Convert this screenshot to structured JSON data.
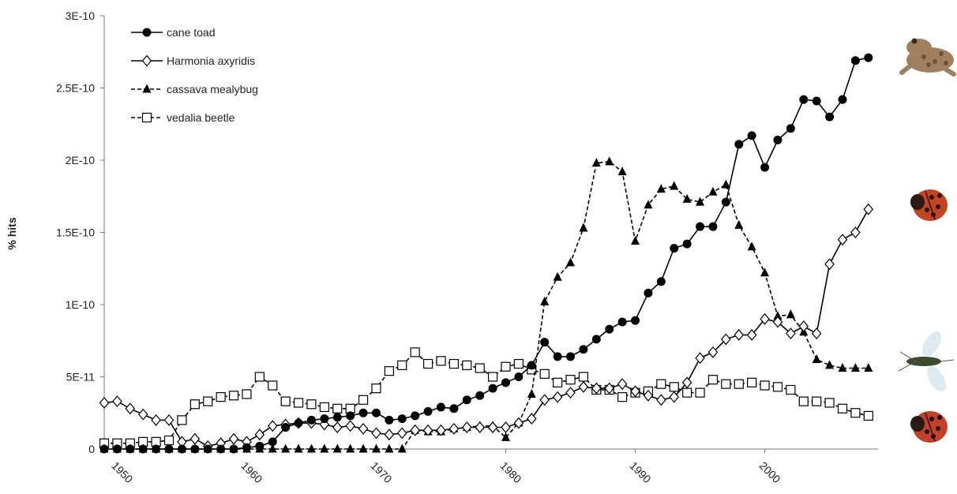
{
  "chart_data": {
    "type": "line",
    "ylabel": "% hits",
    "xlabel": "",
    "xlim": [
      1949,
      2008.5
    ],
    "ylim": [
      0,
      3e-10
    ],
    "y_ticks": [
      {
        "value": 0,
        "label": "0"
      },
      {
        "value": 5e-11,
        "label": "5E-11"
      },
      {
        "value": 1e-10,
        "label": "1E-10"
      },
      {
        "value": 1.5e-10,
        "label": "1.5E-10"
      },
      {
        "value": 2e-10,
        "label": "2E-10"
      },
      {
        "value": 2.5e-10,
        "label": "2.5E-10"
      },
      {
        "value": 3e-10,
        "label": "3E-10"
      }
    ],
    "x_ticks": [
      {
        "value": 1950,
        "label": "1950"
      },
      {
        "value": 1960,
        "label": "1960"
      },
      {
        "value": 1970,
        "label": "1970"
      },
      {
        "value": 1980,
        "label": "1980"
      },
      {
        "value": 1990,
        "label": "1990"
      },
      {
        "value": 2000,
        "label": "2000"
      }
    ],
    "legend_position": "top-left",
    "grid": false,
    "x": [
      1949,
      1950,
      1951,
      1952,
      1953,
      1954,
      1955,
      1956,
      1957,
      1958,
      1959,
      1960,
      1961,
      1962,
      1963,
      1964,
      1965,
      1966,
      1967,
      1968,
      1969,
      1970,
      1971,
      1972,
      1973,
      1974,
      1975,
      1976,
      1977,
      1978,
      1979,
      1980,
      1981,
      1982,
      1983,
      1984,
      1985,
      1986,
      1987,
      1988,
      1989,
      1990,
      1991,
      1992,
      1993,
      1994,
      1995,
      1996,
      1997,
      1998,
      1999,
      2000,
      2001,
      2002,
      2003,
      2004,
      2005,
      2006,
      2007,
      2008
    ],
    "series": [
      {
        "name": "cane toad",
        "style": "solid",
        "marker": "filled-circle",
        "color": "#000000",
        "values": [
          0,
          0,
          0,
          0,
          0,
          0,
          0,
          0,
          0,
          0,
          0,
          1e-12,
          2e-12,
          5e-12,
          1.5e-11,
          1.8e-11,
          2e-11,
          2.1e-11,
          2.2e-11,
          2.3e-11,
          2.5e-11,
          2.5e-11,
          2e-11,
          2.1e-11,
          2.3e-11,
          2.6e-11,
          2.9e-11,
          2.8e-11,
          3.4e-11,
          3.7e-11,
          4.2e-11,
          4.6e-11,
          5e-11,
          5.8e-11,
          7.4e-11,
          6.4e-11,
          6.4e-11,
          6.9e-11,
          7.6e-11,
          8.3e-11,
          8.8e-11,
          8.9e-11,
          1.08e-10,
          1.16e-10,
          1.39e-10,
          1.42e-10,
          1.54e-10,
          1.54e-10,
          1.71e-10,
          2.11e-10,
          2.17e-10,
          1.95e-10,
          2.14e-10,
          2.22e-10,
          2.42e-10,
          2.41e-10,
          2.3e-10,
          2.42e-10,
          2.69e-10,
          2.71e-10
        ]
      },
      {
        "name": "Harmonia axyridis",
        "style": "solid",
        "marker": "open-diamond",
        "color": "#000000",
        "values": [
          3.2e-11,
          3.3e-11,
          2.8e-11,
          2.4e-11,
          2e-11,
          2e-11,
          5e-12,
          7e-12,
          2e-12,
          4e-12,
          7e-12,
          5e-12,
          1e-11,
          1.6e-11,
          1.7e-11,
          1.8e-11,
          1.8e-11,
          1.7e-11,
          1.5e-11,
          1.6e-11,
          1.4e-11,
          1.1e-11,
          1e-11,
          1.1e-11,
          1.3e-11,
          1.3e-11,
          1.3e-11,
          1.4e-11,
          1.5e-11,
          1.5e-11,
          1.5e-11,
          1.5e-11,
          1.8e-11,
          2.1e-11,
          3.4e-11,
          3.6e-11,
          3.9e-11,
          4.3e-11,
          4.2e-11,
          4.2e-11,
          4.5e-11,
          4e-11,
          3.7e-11,
          3.4e-11,
          3.6e-11,
          4.6e-11,
          6.3e-11,
          6.7e-11,
          7.6e-11,
          7.9e-11,
          7.9e-11,
          9e-11,
          8.8e-11,
          8e-11,
          8.5e-11,
          8e-11,
          1.28e-10,
          1.45e-10,
          1.5e-10,
          1.66e-10
        ]
      },
      {
        "name": "cassava mealybug",
        "style": "dashed",
        "marker": "filled-triangle",
        "color": "#000000",
        "values": [
          0,
          0,
          0,
          0,
          0,
          0,
          0,
          0,
          0,
          0,
          0,
          0,
          0,
          0,
          0,
          0,
          0,
          0,
          0,
          0,
          0,
          0,
          0,
          0,
          1.3e-11,
          1.2e-11,
          1.2e-11,
          1.4e-11,
          1.5e-11,
          1.6e-11,
          1.6e-11,
          8e-12,
          1.8e-11,
          3.8e-11,
          1.02e-10,
          1.19e-10,
          1.29e-10,
          1.53e-10,
          1.98e-10,
          1.99e-10,
          1.92e-10,
          1.44e-10,
          1.69e-10,
          1.8e-10,
          1.82e-10,
          1.73e-10,
          1.71e-10,
          1.78e-10,
          1.83e-10,
          1.55e-10,
          1.4e-10,
          1.22e-10,
          9.2e-11,
          9.3e-11,
          8.1e-11,
          6.2e-11,
          5.8e-11,
          5.6e-11,
          5.6e-11,
          5.6e-11
        ]
      },
      {
        "name": "vedalia beetle",
        "style": "dashed",
        "marker": "open-square",
        "color": "#000000",
        "values": [
          4e-12,
          4e-12,
          4e-12,
          5e-12,
          5e-12,
          6e-12,
          2e-11,
          3.1e-11,
          3.3e-11,
          3.6e-11,
          3.7e-11,
          3.8e-11,
          5e-11,
          4.4e-11,
          3.3e-11,
          3.2e-11,
          3.1e-11,
          2.9e-11,
          2.8e-11,
          2.8e-11,
          3.4e-11,
          4.2e-11,
          5.4e-11,
          5.8e-11,
          6.7e-11,
          5.9e-11,
          6.1e-11,
          5.9e-11,
          5.8e-11,
          5.6e-11,
          5e-11,
          5.7e-11,
          5.9e-11,
          5.5e-11,
          5.2e-11,
          4.6e-11,
          4.8e-11,
          5e-11,
          4.1e-11,
          4.1e-11,
          3.6e-11,
          3.9e-11,
          4e-11,
          4.5e-11,
          4.3e-11,
          3.9e-11,
          3.9e-11,
          4.8e-11,
          4.5e-11,
          4.5e-11,
          4.6e-11,
          4.4e-11,
          4.3e-11,
          4.1e-11,
          3.3e-11,
          3.3e-11,
          3.2e-11,
          2.8e-11,
          2.5e-11,
          2.3e-11
        ]
      }
    ]
  },
  "side_images": [
    {
      "name": "cane-toad-photo",
      "icon": "toad",
      "body_color": "#a08060",
      "spot_color": "#6e5236"
    },
    {
      "name": "harmonia-ladybug-photo",
      "icon": "ladybug",
      "body_color": "#c0461f",
      "spot_color": "#2a1408"
    },
    {
      "name": "mealybug-predator-photo",
      "icon": "winged-insect",
      "body_color": "#3c4a30",
      "spot_color": "#d8e6ee"
    },
    {
      "name": "vedalia-beetle-photo",
      "icon": "ladybug",
      "body_color": "#c4402a",
      "spot_color": "#1a0d06"
    }
  ]
}
